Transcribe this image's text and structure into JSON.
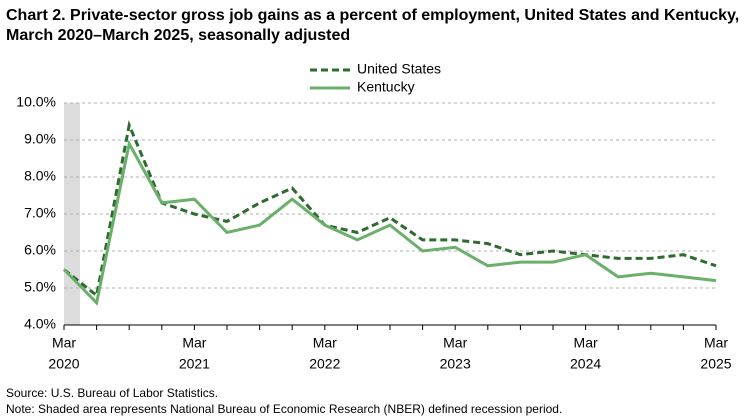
{
  "chart_data": {
    "type": "line",
    "title": "Chart 2. Private-sector gross job gains as a percent of employment, United States and Kentucky, March 2020–March 2025, seasonally adjusted",
    "categories": [
      [
        "Mar",
        "2020"
      ],
      null,
      null,
      null,
      [
        "Mar",
        "2021"
      ],
      null,
      null,
      null,
      [
        "Mar",
        "2022"
      ],
      null,
      null,
      null,
      [
        "Mar",
        "2023"
      ],
      null,
      null,
      null,
      [
        "Mar",
        "2024"
      ],
      null,
      null,
      null,
      [
        "Mar",
        "2025"
      ]
    ],
    "series": [
      {
        "name": "United States",
        "color": "#2e6b2e",
        "dashed": true,
        "values": [
          5.5,
          4.8,
          9.4,
          7.3,
          7.0,
          6.8,
          7.3,
          7.7,
          6.7,
          6.5,
          6.9,
          6.3,
          6.3,
          6.2,
          5.9,
          6.0,
          5.9,
          5.8,
          5.8,
          5.9,
          5.6
        ]
      },
      {
        "name": "Kentucky",
        "color": "#6aaf6a",
        "dashed": false,
        "values": [
          5.5,
          4.6,
          8.9,
          7.3,
          7.4,
          6.5,
          6.7,
          7.4,
          6.7,
          6.3,
          6.7,
          6.0,
          6.1,
          5.6,
          5.7,
          5.7,
          5.9,
          5.3,
          5.4,
          5.3,
          5.2
        ]
      }
    ],
    "ylim": [
      4,
      10
    ],
    "yticks": [
      {
        "value": 4,
        "label": "4.0%"
      },
      {
        "value": 5,
        "label": "5.0%"
      },
      {
        "value": 6,
        "label": "6.0%"
      },
      {
        "value": 7,
        "label": "7.0%"
      },
      {
        "value": 8,
        "label": "8.0%"
      },
      {
        "value": 9,
        "label": "9.0%"
      },
      {
        "value": 10,
        "label": "10.0%"
      }
    ],
    "grid": true,
    "source": "Source: U.S. Bureau of Labor Statistics.",
    "note": "Note: Shaded area represents National Bureau of Economic Research (NBER) defined recession period."
  }
}
